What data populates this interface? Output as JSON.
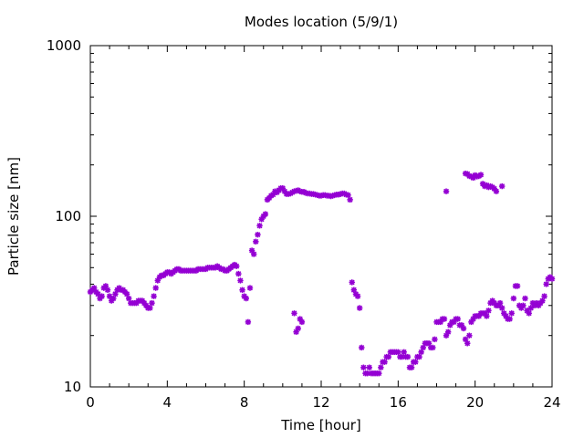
{
  "chart_data": {
    "type": "scatter",
    "title": "Modes location (5/9/1)",
    "xlabel": "Time [hour]",
    "ylabel": "Particle size [nm]",
    "xlim": [
      0,
      24
    ],
    "ylim": [
      10,
      1000
    ],
    "yscale": "log",
    "grid": false,
    "legend": "none",
    "marker_color": "#9400d3",
    "x_ticks": [
      0,
      4,
      8,
      12,
      16,
      20,
      24
    ],
    "x_tick_labels": [
      "0",
      "4",
      "8",
      "12",
      "16",
      "20",
      "24"
    ],
    "y_ticks": [
      10,
      100,
      1000
    ],
    "y_tick_labels": [
      "10",
      "100",
      "1000"
    ],
    "points": [
      [
        0.0,
        36
      ],
      [
        0.1,
        37
      ],
      [
        0.2,
        38
      ],
      [
        0.3,
        36
      ],
      [
        0.4,
        35
      ],
      [
        0.5,
        33
      ],
      [
        0.6,
        34
      ],
      [
        0.7,
        38
      ],
      [
        0.8,
        39
      ],
      [
        0.9,
        37
      ],
      [
        1.0,
        34
      ],
      [
        1.1,
        32
      ],
      [
        1.2,
        33
      ],
      [
        1.3,
        35
      ],
      [
        1.4,
        37
      ],
      [
        1.5,
        38
      ],
      [
        1.6,
        37
      ],
      [
        1.7,
        37
      ],
      [
        1.8,
        36
      ],
      [
        1.9,
        35
      ],
      [
        2.0,
        33
      ],
      [
        2.1,
        31
      ],
      [
        2.2,
        31
      ],
      [
        2.3,
        31
      ],
      [
        2.4,
        31
      ],
      [
        2.5,
        32
      ],
      [
        2.6,
        32
      ],
      [
        2.7,
        32
      ],
      [
        2.8,
        31
      ],
      [
        2.9,
        30
      ],
      [
        3.0,
        29
      ],
      [
        3.1,
        29
      ],
      [
        3.2,
        31
      ],
      [
        3.3,
        34
      ],
      [
        3.4,
        38
      ],
      [
        3.5,
        42
      ],
      [
        3.6,
        44
      ],
      [
        3.7,
        45
      ],
      [
        3.8,
        45
      ],
      [
        3.9,
        46
      ],
      [
        4.0,
        47
      ],
      [
        4.1,
        47
      ],
      [
        4.2,
        46
      ],
      [
        4.3,
        47
      ],
      [
        4.4,
        48
      ],
      [
        4.5,
        49
      ],
      [
        4.6,
        49
      ],
      [
        4.7,
        48
      ],
      [
        4.8,
        48
      ],
      [
        4.9,
        48
      ],
      [
        5.0,
        48
      ],
      [
        5.1,
        48
      ],
      [
        5.2,
        48
      ],
      [
        5.3,
        48
      ],
      [
        5.4,
        48
      ],
      [
        5.5,
        48
      ],
      [
        5.6,
        49
      ],
      [
        5.7,
        49
      ],
      [
        5.8,
        49
      ],
      [
        5.9,
        49
      ],
      [
        6.0,
        49
      ],
      [
        6.1,
        50
      ],
      [
        6.2,
        50
      ],
      [
        6.3,
        50
      ],
      [
        6.4,
        50
      ],
      [
        6.5,
        50
      ],
      [
        6.6,
        51
      ],
      [
        6.7,
        50
      ],
      [
        6.8,
        49
      ],
      [
        6.9,
        49
      ],
      [
        7.0,
        48
      ],
      [
        7.1,
        48
      ],
      [
        7.2,
        49
      ],
      [
        7.3,
        50
      ],
      [
        7.4,
        51
      ],
      [
        7.5,
        52
      ],
      [
        7.6,
        51
      ],
      [
        7.7,
        46
      ],
      [
        7.8,
        42
      ],
      [
        7.9,
        37
      ],
      [
        8.0,
        34
      ],
      [
        8.1,
        33
      ],
      [
        8.2,
        24
      ],
      [
        8.3,
        38
      ],
      [
        8.4,
        63
      ],
      [
        8.5,
        60
      ],
      [
        8.6,
        71
      ],
      [
        8.7,
        78
      ],
      [
        8.8,
        88
      ],
      [
        8.9,
        96
      ],
      [
        9.0,
        100
      ],
      [
        9.1,
        103
      ],
      [
        9.2,
        125
      ],
      [
        9.3,
        128
      ],
      [
        9.4,
        132
      ],
      [
        9.5,
        134
      ],
      [
        9.6,
        140
      ],
      [
        9.7,
        138
      ],
      [
        9.8,
        142
      ],
      [
        9.9,
        146
      ],
      [
        10.0,
        146
      ],
      [
        10.1,
        140
      ],
      [
        10.2,
        135
      ],
      [
        10.3,
        135
      ],
      [
        10.4,
        136
      ],
      [
        10.5,
        138
      ],
      [
        10.6,
        140
      ],
      [
        10.7,
        141
      ],
      [
        10.8,
        142
      ],
      [
        10.9,
        140
      ],
      [
        11.0,
        139
      ],
      [
        11.1,
        139
      ],
      [
        11.2,
        137
      ],
      [
        11.3,
        136
      ],
      [
        11.4,
        136
      ],
      [
        11.5,
        135
      ],
      [
        11.6,
        135
      ],
      [
        11.7,
        134
      ],
      [
        11.8,
        133
      ],
      [
        11.9,
        132
      ],
      [
        12.0,
        132
      ],
      [
        12.1,
        133
      ],
      [
        12.2,
        133
      ],
      [
        12.3,
        132
      ],
      [
        12.4,
        132
      ],
      [
        12.5,
        131
      ],
      [
        12.6,
        132
      ],
      [
        12.7,
        133
      ],
      [
        12.8,
        134
      ],
      [
        12.9,
        134
      ],
      [
        13.0,
        135
      ],
      [
        13.1,
        136
      ],
      [
        13.2,
        136
      ],
      [
        13.3,
        134
      ],
      [
        13.4,
        133
      ],
      [
        13.5,
        125
      ],
      [
        10.6,
        27
      ],
      [
        10.7,
        21
      ],
      [
        10.8,
        22
      ],
      [
        10.9,
        25
      ],
      [
        11.0,
        24
      ],
      [
        13.6,
        41
      ],
      [
        13.7,
        37
      ],
      [
        13.8,
        35
      ],
      [
        13.9,
        34
      ],
      [
        14.0,
        29
      ],
      [
        14.1,
        17
      ],
      [
        14.2,
        13
      ],
      [
        14.3,
        12
      ],
      [
        14.4,
        12
      ],
      [
        14.5,
        13
      ],
      [
        14.6,
        12
      ],
      [
        14.7,
        12
      ],
      [
        14.8,
        12
      ],
      [
        14.9,
        12
      ],
      [
        15.0,
        12
      ],
      [
        15.1,
        13
      ],
      [
        15.2,
        14
      ],
      [
        15.3,
        14
      ],
      [
        15.4,
        15
      ],
      [
        15.5,
        15
      ],
      [
        15.6,
        16
      ],
      [
        15.7,
        16
      ],
      [
        15.8,
        16
      ],
      [
        15.9,
        16
      ],
      [
        16.0,
        16
      ],
      [
        16.1,
        15
      ],
      [
        16.2,
        15
      ],
      [
        16.3,
        16
      ],
      [
        16.4,
        15
      ],
      [
        16.5,
        15
      ],
      [
        16.6,
        13
      ],
      [
        16.7,
        13
      ],
      [
        16.8,
        14
      ],
      [
        16.9,
        14
      ],
      [
        17.0,
        15
      ],
      [
        17.1,
        15
      ],
      [
        17.2,
        16
      ],
      [
        17.3,
        17
      ],
      [
        17.4,
        18
      ],
      [
        17.5,
        18
      ],
      [
        17.6,
        18
      ],
      [
        17.7,
        17
      ],
      [
        17.8,
        17
      ],
      [
        17.9,
        19
      ],
      [
        18.0,
        24
      ],
      [
        18.1,
        24
      ],
      [
        18.2,
        24
      ],
      [
        18.3,
        25
      ],
      [
        18.4,
        25
      ],
      [
        18.5,
        140
      ],
      [
        18.5,
        20
      ],
      [
        18.6,
        21
      ],
      [
        18.7,
        23
      ],
      [
        18.8,
        24
      ],
      [
        18.9,
        24
      ],
      [
        19.0,
        25
      ],
      [
        19.1,
        25
      ],
      [
        19.2,
        23
      ],
      [
        19.3,
        23
      ],
      [
        19.4,
        22
      ],
      [
        19.5,
        19
      ],
      [
        19.6,
        18
      ],
      [
        19.7,
        20
      ],
      [
        19.5,
        178
      ],
      [
        19.6,
        177
      ],
      [
        19.7,
        172
      ],
      [
        19.8,
        171
      ],
      [
        19.9,
        168
      ],
      [
        20.0,
        174
      ],
      [
        20.1,
        171
      ],
      [
        20.2,
        172
      ],
      [
        20.3,
        175
      ],
      [
        20.4,
        155
      ],
      [
        20.5,
        150
      ],
      [
        20.6,
        152
      ],
      [
        20.7,
        148
      ],
      [
        20.8,
        150
      ],
      [
        20.9,
        148
      ],
      [
        21.0,
        145
      ],
      [
        21.1,
        140
      ],
      [
        21.4,
        150
      ],
      [
        19.8,
        24
      ],
      [
        19.9,
        25
      ],
      [
        20.0,
        26
      ],
      [
        20.1,
        26
      ],
      [
        20.2,
        26
      ],
      [
        20.3,
        27
      ],
      [
        20.4,
        27
      ],
      [
        20.5,
        27
      ],
      [
        20.6,
        26
      ],
      [
        20.7,
        28
      ],
      [
        20.8,
        31
      ],
      [
        20.9,
        32
      ],
      [
        21.0,
        31
      ],
      [
        21.1,
        30
      ],
      [
        21.2,
        30
      ],
      [
        21.3,
        31
      ],
      [
        21.4,
        29
      ],
      [
        21.5,
        27
      ],
      [
        21.6,
        26
      ],
      [
        21.7,
        25
      ],
      [
        21.8,
        25
      ],
      [
        21.9,
        27
      ],
      [
        22.0,
        33
      ],
      [
        22.1,
        39
      ],
      [
        22.2,
        39
      ],
      [
        22.3,
        30
      ],
      [
        22.4,
        29
      ],
      [
        22.5,
        30
      ],
      [
        22.6,
        33
      ],
      [
        22.7,
        28
      ],
      [
        22.8,
        27
      ],
      [
        22.9,
        29
      ],
      [
        23.0,
        31
      ],
      [
        23.1,
        30
      ],
      [
        23.2,
        31
      ],
      [
        23.3,
        30
      ],
      [
        23.4,
        31
      ],
      [
        23.5,
        32
      ],
      [
        23.6,
        34
      ],
      [
        23.7,
        40
      ],
      [
        23.8,
        43
      ],
      [
        23.9,
        44
      ],
      [
        24.0,
        43
      ]
    ]
  }
}
